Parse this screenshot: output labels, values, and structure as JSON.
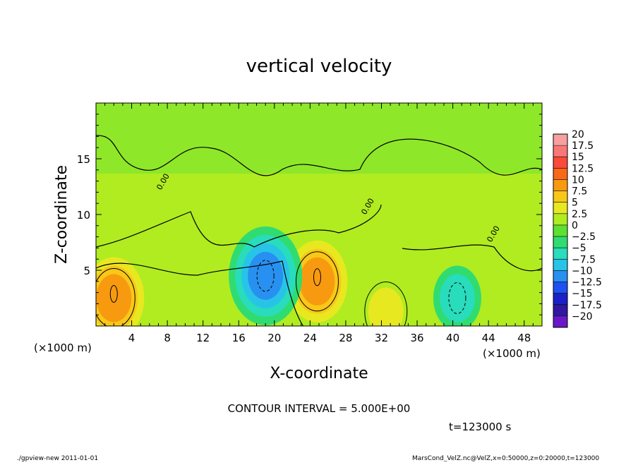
{
  "chart_data": {
    "type": "heatmap",
    "title": "vertical velocity",
    "xlabel": "X-coordinate",
    "ylabel": "Z-coordinate",
    "x_unit": "(×1000 m)",
    "y_unit": "(×1000 m)",
    "xlim": [
      0,
      50
    ],
    "ylim": [
      0,
      20
    ],
    "x_ticks": [
      4,
      8,
      12,
      16,
      20,
      24,
      28,
      32,
      36,
      40,
      44,
      48
    ],
    "y_ticks": [
      5,
      10,
      15
    ],
    "contour_interval_text": "CONTOUR INTERVAL = 5.000E+00",
    "time_text": "t=123000 s",
    "contour_label": "0.00",
    "colorbar": {
      "levels": [
        20,
        17.5,
        15,
        12.5,
        10,
        7.5,
        5,
        2.5,
        0,
        -2.5,
        -5,
        -7.5,
        -10,
        -12.5,
        -15,
        -17.5,
        -20
      ],
      "labels": [
        "20",
        "17.5",
        "15",
        "12.5",
        "10",
        "7.5",
        "5",
        "2.5",
        "0",
        "−2.5",
        "−5",
        "−7.5",
        "−10",
        "−12.5",
        "−15",
        "−17.5",
        "−20"
      ],
      "colors": [
        "#f6a0a0",
        "#f87878",
        "#fa4a3a",
        "#f86818",
        "#f89a10",
        "#f8c818",
        "#e8e820",
        "#b0ec20",
        "#5ee030",
        "#30dc70",
        "#28dcbc",
        "#28c4e8",
        "#2890f0",
        "#2050f0",
        "#1c20c8",
        "#3018a0",
        "#6818c8"
      ]
    },
    "features": [
      {
        "kind": "updraft",
        "x": 2.0,
        "z": 2.5,
        "peak": 10
      },
      {
        "kind": "updraft",
        "x": 24.8,
        "z": 4.0,
        "peak": 10
      },
      {
        "kind": "updraft",
        "x": 32.5,
        "z": 1.3,
        "peak": 5
      },
      {
        "kind": "downdraft",
        "x": 19.0,
        "z": 4.5,
        "peak": -10
      },
      {
        "kind": "downdraft",
        "x": 40.5,
        "z": 2.5,
        "peak": -5
      }
    ]
  },
  "footer": {
    "left": "./gpview-new  2011-01-01",
    "right": "MarsCond_VelZ.nc@VelZ,x=0:50000,z=0:20000,t=123000"
  }
}
